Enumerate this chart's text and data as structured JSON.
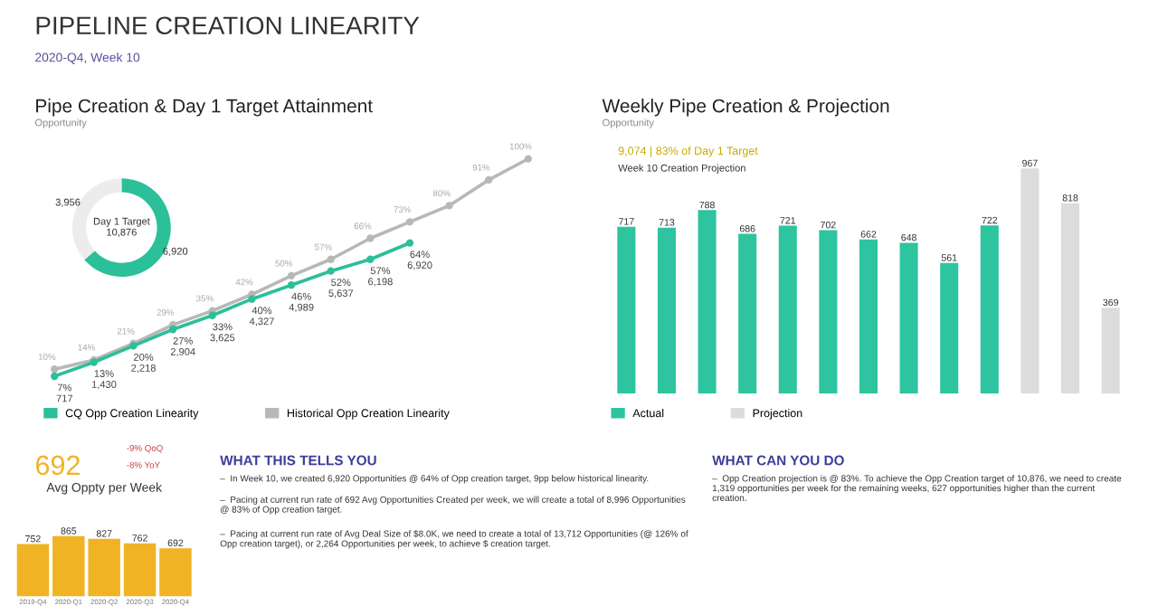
{
  "chart_data": [
    {
      "type": "other",
      "title": "PIPELINE CREATION LINEARITY",
      "subtitle": "2020-Q4, Week 10"
    },
    {
      "type": "line",
      "title": "Pipe Creation & Day 1 Target Attainment",
      "subtitle": "Opportunity",
      "categories": [
        null,
        null,
        null,
        null,
        null,
        null,
        null,
        null,
        null,
        null,
        null,
        null,
        null
      ],
      "marker": "circle",
      "legend": "bottom left",
      "series": [
        {
          "name": "CQ Opp Creation Linearity",
          "color": "#2bbf9a",
          "values": [
            7,
            13,
            20,
            27,
            33,
            40,
            46,
            52,
            57,
            64,
            null,
            null,
            null
          ],
          "value_labels": [
            "7%\n717",
            "13%\n1,430",
            "20%\n2,218",
            "27%\n2,904",
            "33%\n3,625",
            "40%\n4,327",
            "46%\n4,989",
            "52%\n5,637",
            "57%\n6,198",
            "64%\n6,920",
            null,
            null,
            null
          ]
        },
        {
          "name": "Historical Opp Creation Linearity",
          "color": "#b8b8b8",
          "values": [
            10,
            14,
            21,
            29,
            35,
            42,
            50,
            57,
            66,
            73,
            80,
            91,
            100
          ],
          "value_labels": [
            "10%",
            "14%",
            "21%",
            "29%",
            "35%",
            "42%",
            "50%",
            "57%",
            "66%",
            "73%",
            "80%",
            "91%",
            "100%"
          ]
        }
      ]
    },
    {
      "type": "donut",
      "categories": [
        null,
        null
      ],
      "values": [
        6920,
        3956
      ],
      "colors": [
        "#2bbf9a",
        "#ececec"
      ],
      "value_labels": [
        "6,920",
        "3,956"
      ],
      "annotations": [
        "Day 1 Target\n10,876"
      ]
    },
    {
      "type": "bar",
      "title": "Weekly Pipe Creation & Projection",
      "subtitle": "Opportunity",
      "categories": [
        null,
        null,
        null,
        null,
        null,
        null,
        null,
        null,
        null,
        null,
        null,
        null,
        null
      ],
      "stacked": true,
      "data_labels": true,
      "legend": "bottom left",
      "annotations": [
        "9,074 | 83% of Day 1 Target",
        "Week 10 Creation Projection"
      ],
      "series": [
        {
          "name": "Actual",
          "color": "#2ec4a0",
          "values": [
            717,
            713,
            788,
            686,
            721,
            702,
            662,
            648,
            561,
            722,
            null,
            null,
            null
          ]
        },
        {
          "name": "Projection",
          "color": "#dcdcdc",
          "values": [
            null,
            null,
            null,
            null,
            null,
            null,
            null,
            null,
            null,
            null,
            967,
            818,
            369
          ]
        }
      ]
    },
    {
      "type": "bar",
      "title": "Avg Oppty per Week",
      "categories": [
        "2019-Q4",
        "2020-Q1",
        "2020-Q2",
        "2020-Q3",
        "2020-Q4"
      ],
      "values": [
        752,
        865,
        827,
        762,
        692
      ],
      "color": "#f0b323",
      "data_labels": true,
      "annotations": [
        "692",
        "-9% QoQ",
        "-8% YoY"
      ]
    },
    {
      "type": "other",
      "title": "WHAT THIS TELLS YOU",
      "annotations": [
        "–  In Week 10, we created 6,920 Opportunities @ 64% of Opp creation target, 9pp below historical linearity.",
        "–  Pacing at current run rate of 692 Avg Opportunities Created per week, we will create a total of 8,996 Opportunities\n@ 83% of Opp creation target.",
        "–  Pacing at current run rate of Avg Deal Size of $8.0K, we need to create a total of 13,712 Opportunities (@ 126% of\nOpp creation target), or 2,264 Opportunities per week, to achieve $ creation target."
      ]
    },
    {
      "type": "other",
      "title": "WHAT CAN YOU DO",
      "annotations": [
        "–  Opp Creation projection is @ 83%. To achieve the Opp Creation target of 10,876, we need to create\n1,319 opportunities per week for the remaining weeks, 627 opportunities higher than the current\ncreation."
      ]
    }
  ]
}
